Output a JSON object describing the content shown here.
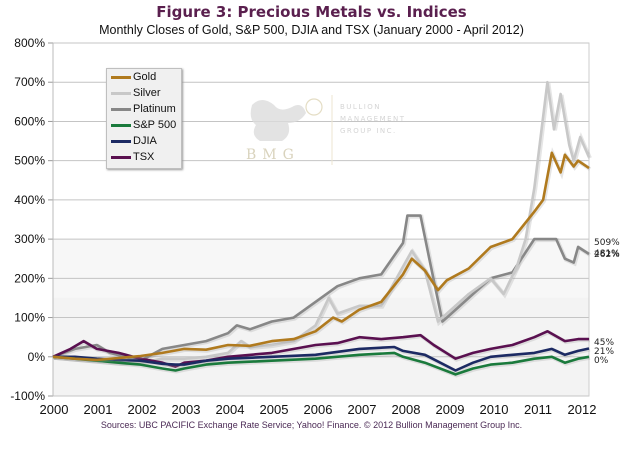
{
  "header": {
    "title": "Figure 3:  Precious Metals vs. Indices",
    "subtitle": "Monthly Closes of Gold, S&P 500, DJIA and TSX (January 2000 - April 2012)"
  },
  "footer": {
    "source": "Sources:  UBC PACIFIC Exchange Rate Service; Yahoo! Finance. © 2012 Bullion Management Group Inc."
  },
  "watermark": {
    "initials": "BMG",
    "company_lines": [
      "BULLION",
      "MANAGEMENT",
      "GROUP INC."
    ]
  },
  "chart_data": {
    "type": "line",
    "title": "Figure 3:  Precious Metals vs. Indices",
    "subtitle": "Monthly Closes of Gold, S&P 500, DJIA and TSX (January 2000 - April 2012)",
    "xlabel": "",
    "ylabel": "",
    "xlim": [
      2000,
      2012.25
    ],
    "ylim": [
      -100,
      800
    ],
    "yticks": [
      -100,
      0,
      100,
      200,
      300,
      400,
      500,
      600,
      700,
      800
    ],
    "ytick_labels": [
      "-100%",
      "0%",
      "100%",
      "200%",
      "300%",
      "400%",
      "500%",
      "600%",
      "700%",
      "800%"
    ],
    "xticks": [
      2000,
      2001,
      2002,
      2003,
      2004,
      2005,
      2006,
      2007,
      2008,
      2009,
      2010,
      2011,
      2012
    ],
    "xtick_labels": [
      "2000",
      "2001",
      "2002",
      "2003",
      "2004",
      "2005",
      "2006",
      "2007",
      "2008",
      "2009",
      "2010",
      "2011",
      "2012"
    ],
    "grid": true,
    "legend": "top-left",
    "series": [
      {
        "name": "Gold",
        "color": "#b07a1e",
        "end_label": "481%",
        "x": [
          2000,
          2000.5,
          2001,
          2001.5,
          2002,
          2002.5,
          2003,
          2003.5,
          2004,
          2004.5,
          2005,
          2005.5,
          2006,
          2006.4,
          2006.6,
          2007,
          2007.5,
          2008,
          2008.2,
          2008.5,
          2008.8,
          2009,
          2009.5,
          2010,
          2010.5,
          2011,
          2011.2,
          2011.4,
          2011.6,
          2011.7,
          2011.9,
          2012,
          2012.25
        ],
        "y": [
          0,
          -5,
          -8,
          -3,
          2,
          10,
          20,
          18,
          30,
          28,
          40,
          45,
          65,
          100,
          90,
          120,
          140,
          210,
          250,
          220,
          170,
          195,
          225,
          280,
          300,
          370,
          400,
          520,
          470,
          515,
          485,
          500,
          481
        ]
      },
      {
        "name": "Silver",
        "color": "#c8c8c8",
        "end_label": "509%",
        "x": [
          2000,
          2000.5,
          2001,
          2001.5,
          2002,
          2002.5,
          2003,
          2003.5,
          2004,
          2004.3,
          2004.5,
          2005,
          2005.5,
          2006,
          2006.3,
          2006.5,
          2007,
          2007.5,
          2008,
          2008.2,
          2008.5,
          2008.8,
          2009,
          2009.5,
          2010,
          2010.3,
          2010.6,
          2010.8,
          2011,
          2011.3,
          2011.45,
          2011.6,
          2011.8,
          2011.9,
          2012.05,
          2012.25
        ],
        "y": [
          0,
          -5,
          -10,
          -15,
          -15,
          -5,
          -5,
          0,
          10,
          40,
          25,
          30,
          40,
          80,
          150,
          110,
          130,
          130,
          230,
          270,
          220,
          90,
          110,
          160,
          200,
          160,
          230,
          300,
          430,
          700,
          580,
          670,
          540,
          500,
          560,
          509
        ]
      },
      {
        "name": "Platinum",
        "color": "#878787",
        "end_label": "262%",
        "x": [
          2000,
          2000.5,
          2001,
          2001.3,
          2002,
          2002.5,
          2003,
          2003.5,
          2004,
          2004.2,
          2004.5,
          2005,
          2005.5,
          2006,
          2006.5,
          2007,
          2007.5,
          2008,
          2008.1,
          2008.4,
          2008.6,
          2008.9,
          2009,
          2009.5,
          2010,
          2010.5,
          2011,
          2011.5,
          2011.7,
          2011.9,
          2012,
          2012.25
        ],
        "y": [
          0,
          20,
          30,
          10,
          -10,
          20,
          30,
          40,
          60,
          80,
          70,
          90,
          100,
          140,
          180,
          200,
          210,
          290,
          360,
          360,
          250,
          90,
          100,
          150,
          200,
          215,
          300,
          300,
          250,
          240,
          280,
          262
        ]
      },
      {
        "name": "S&P 500",
        "color": "#1a7a3c",
        "end_label": "0%",
        "x": [
          2000,
          2000.5,
          2001,
          2001.5,
          2002,
          2002.5,
          2002.8,
          2003,
          2003.5,
          2004,
          2005,
          2006,
          2007,
          2007.8,
          2008,
          2008.5,
          2009.2,
          2009.6,
          2010,
          2010.5,
          2011,
          2011.4,
          2011.7,
          2012,
          2012.25
        ],
        "y": [
          0,
          -5,
          -10,
          -15,
          -20,
          -30,
          -35,
          -30,
          -20,
          -15,
          -10,
          -5,
          5,
          10,
          0,
          -15,
          -45,
          -30,
          -20,
          -15,
          -5,
          0,
          -15,
          -5,
          0
        ]
      },
      {
        "name": "DJIA",
        "color": "#1c2a63",
        "end_label": "21%",
        "x": [
          2000,
          2000.5,
          2001,
          2001.5,
          2002,
          2002.5,
          2002.8,
          2003,
          2003.5,
          2004,
          2005,
          2006,
          2007,
          2007.8,
          2008,
          2008.5,
          2009.2,
          2009.6,
          2010,
          2010.5,
          2011,
          2011.4,
          2011.7,
          2012,
          2012.25
        ],
        "y": [
          0,
          0,
          -5,
          -8,
          -10,
          -18,
          -20,
          -20,
          -10,
          -5,
          0,
          5,
          20,
          25,
          15,
          5,
          -35,
          -15,
          0,
          5,
          10,
          20,
          5,
          15,
          21
        ]
      },
      {
        "name": "TSX",
        "color": "#5a1050",
        "end_label": "45%",
        "x": [
          2000,
          2000.4,
          2000.7,
          2001,
          2001.5,
          2002,
          2002.5,
          2002.8,
          2003,
          2003.5,
          2004,
          2005,
          2006,
          2006.5,
          2007,
          2007.5,
          2008,
          2008.4,
          2008.7,
          2009.2,
          2009.6,
          2010,
          2010.5,
          2011,
          2011.3,
          2011.7,
          2012,
          2012.25
        ],
        "y": [
          0,
          20,
          40,
          20,
          10,
          -5,
          -15,
          -25,
          -15,
          -10,
          0,
          10,
          30,
          35,
          50,
          45,
          50,
          55,
          30,
          -5,
          10,
          20,
          30,
          50,
          65,
          40,
          45,
          45
        ]
      }
    ]
  }
}
